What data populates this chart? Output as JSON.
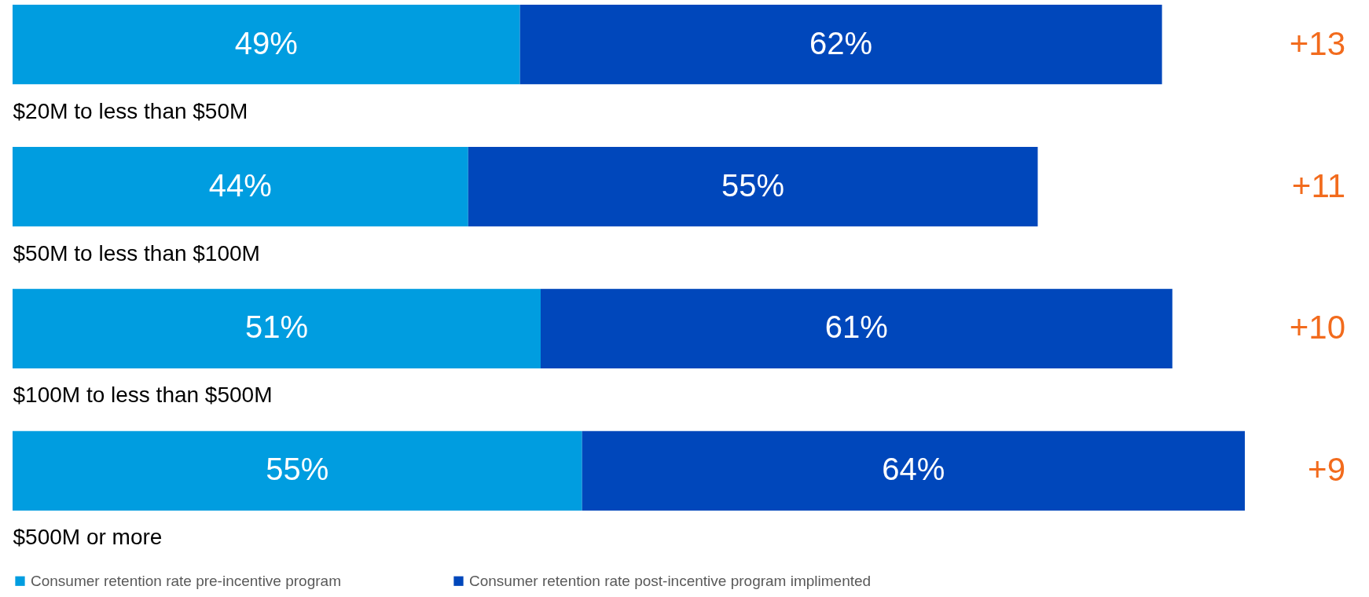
{
  "chart_data": {
    "type": "bar",
    "orientation": "horizontal",
    "stacked": true,
    "tick_labels": "y",
    "categories": [
      "$20M to less than $50M",
      "$50M to less than $100M",
      "$100M to less than $500M",
      "$500M or more"
    ],
    "series": [
      {
        "name": "Consumer retention rate pre-incentive program",
        "color": "#009de0",
        "values": [
          49,
          44,
          51,
          55
        ],
        "value_labels": [
          "49%",
          "44%",
          "51%",
          "55%"
        ]
      },
      {
        "name": "Consumer retention rate post-incentive program implimented",
        "color": "#0047bb",
        "values": [
          62,
          55,
          61,
          64
        ],
        "value_labels": [
          "62%",
          "55%",
          "61%",
          "64%"
        ]
      }
    ],
    "annotations": [
      "+13",
      "+11",
      "+10",
      "+9"
    ],
    "legend": "bottom left"
  }
}
